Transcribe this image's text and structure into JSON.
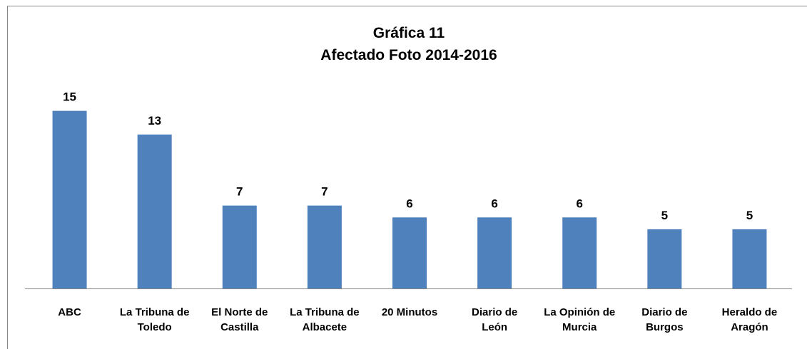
{
  "chart_data": {
    "type": "bar",
    "title": [
      "Gráfica 11",
      "Afectado Foto 2014-2016"
    ],
    "categories": [
      "ABC",
      "La Tribuna de Toledo",
      "El Norte de Castilla",
      "La Tribuna de Albacete",
      "20 Minutos",
      "Diario de León",
      "La Opinión de Murcia",
      "Diario de Burgos",
      "Heraldo de Aragón"
    ],
    "values": [
      15,
      13,
      7,
      7,
      6,
      6,
      6,
      5,
      5
    ],
    "color": "#4f81bd",
    "ylim": [
      0,
      16
    ]
  }
}
